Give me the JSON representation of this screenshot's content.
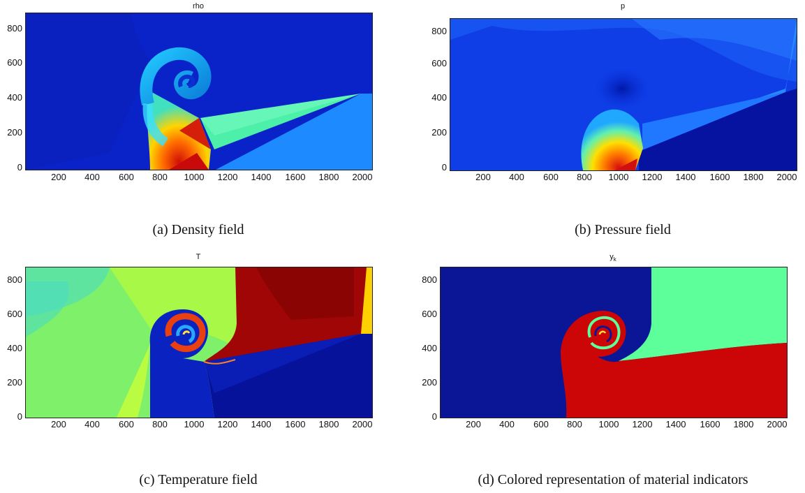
{
  "chart_data": [
    {
      "type": "heatmap",
      "title": "rho",
      "caption": "(a) Density field",
      "xticks": [
        "200",
        "400",
        "600",
        "800",
        "1000",
        "1200",
        "1400",
        "1600",
        "1800",
        "2000"
      ],
      "yticks": [
        "0",
        "200",
        "400",
        "600",
        "800"
      ],
      "xlim": [
        0,
        2048
      ],
      "ylim": [
        0,
        880
      ],
      "colormap": "jet"
    },
    {
      "type": "heatmap",
      "title": "p",
      "caption": "(b) Pressure field",
      "xticks": [
        "200",
        "400",
        "600",
        "800",
        "1000",
        "1200",
        "1400",
        "1600",
        "1800",
        "2000"
      ],
      "yticks": [
        "0",
        "200",
        "400",
        "600",
        "800"
      ],
      "xlim": [
        0,
        2048
      ],
      "ylim": [
        0,
        880
      ],
      "colormap": "jet"
    },
    {
      "type": "heatmap",
      "title": "T",
      "caption": "(c) Temperature field",
      "xticks": [
        "200",
        "400",
        "600",
        "800",
        "1000",
        "1200",
        "1400",
        "1600",
        "1800",
        "2000"
      ],
      "yticks": [
        "0",
        "200",
        "400",
        "600",
        "800"
      ],
      "xlim": [
        0,
        2048
      ],
      "ylim": [
        0,
        880
      ],
      "colormap": "jet"
    },
    {
      "type": "heatmap",
      "title": "y",
      "title_sub": "k",
      "caption": "(d) Colored representation of material indicators",
      "xticks": [
        "200",
        "400",
        "600",
        "800",
        "1000",
        "1200",
        "1400",
        "1600",
        "1800",
        "2000"
      ],
      "yticks": [
        "0",
        "200",
        "400",
        "600",
        "800"
      ],
      "xlim": [
        0,
        2048
      ],
      "ylim": [
        0,
        880
      ],
      "colormap": "jet"
    }
  ]
}
